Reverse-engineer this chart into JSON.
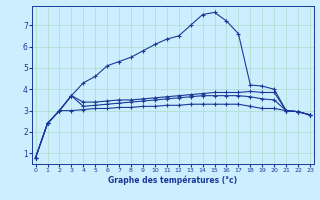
{
  "xlabel": "Graphe des températures (°c)",
  "background_color": "#cceeff",
  "grid_color": "#aaddcc",
  "line_color": "#1a3a9a",
  "x_hours": [
    0,
    1,
    2,
    3,
    4,
    5,
    6,
    7,
    8,
    9,
    10,
    11,
    12,
    13,
    14,
    15,
    16,
    17,
    18,
    19,
    20,
    21,
    22,
    23
  ],
  "curve1": [
    0.8,
    2.4,
    3.0,
    3.0,
    3.05,
    3.1,
    3.1,
    3.15,
    3.15,
    3.2,
    3.2,
    3.25,
    3.25,
    3.3,
    3.3,
    3.3,
    3.3,
    3.3,
    3.2,
    3.1,
    3.1,
    3.0,
    2.95,
    2.8
  ],
  "curve2": [
    0.8,
    2.4,
    3.0,
    3.7,
    4.3,
    4.6,
    5.1,
    5.3,
    5.5,
    5.8,
    6.1,
    6.35,
    6.5,
    7.0,
    7.5,
    7.6,
    7.2,
    6.6,
    4.2,
    4.15,
    4.0,
    3.0,
    2.95,
    2.8
  ],
  "curve3": [
    0.8,
    2.4,
    3.0,
    3.7,
    3.4,
    3.4,
    3.45,
    3.5,
    3.5,
    3.55,
    3.6,
    3.65,
    3.7,
    3.75,
    3.8,
    3.85,
    3.85,
    3.85,
    3.9,
    3.85,
    3.85,
    3.0,
    2.95,
    2.8
  ],
  "curve4": [
    0.8,
    2.4,
    3.0,
    3.7,
    3.2,
    3.25,
    3.3,
    3.35,
    3.4,
    3.45,
    3.5,
    3.55,
    3.6,
    3.65,
    3.7,
    3.7,
    3.7,
    3.7,
    3.65,
    3.55,
    3.5,
    3.0,
    2.95,
    2.8
  ],
  "ylim": [
    0.5,
    7.9
  ],
  "xlim": [
    -0.3,
    23.3
  ],
  "yticks": [
    1,
    2,
    3,
    4,
    5,
    6,
    7
  ],
  "xticks": [
    0,
    1,
    2,
    3,
    4,
    5,
    6,
    7,
    8,
    9,
    10,
    11,
    12,
    13,
    14,
    15,
    16,
    17,
    18,
    19,
    20,
    21,
    22,
    23
  ]
}
